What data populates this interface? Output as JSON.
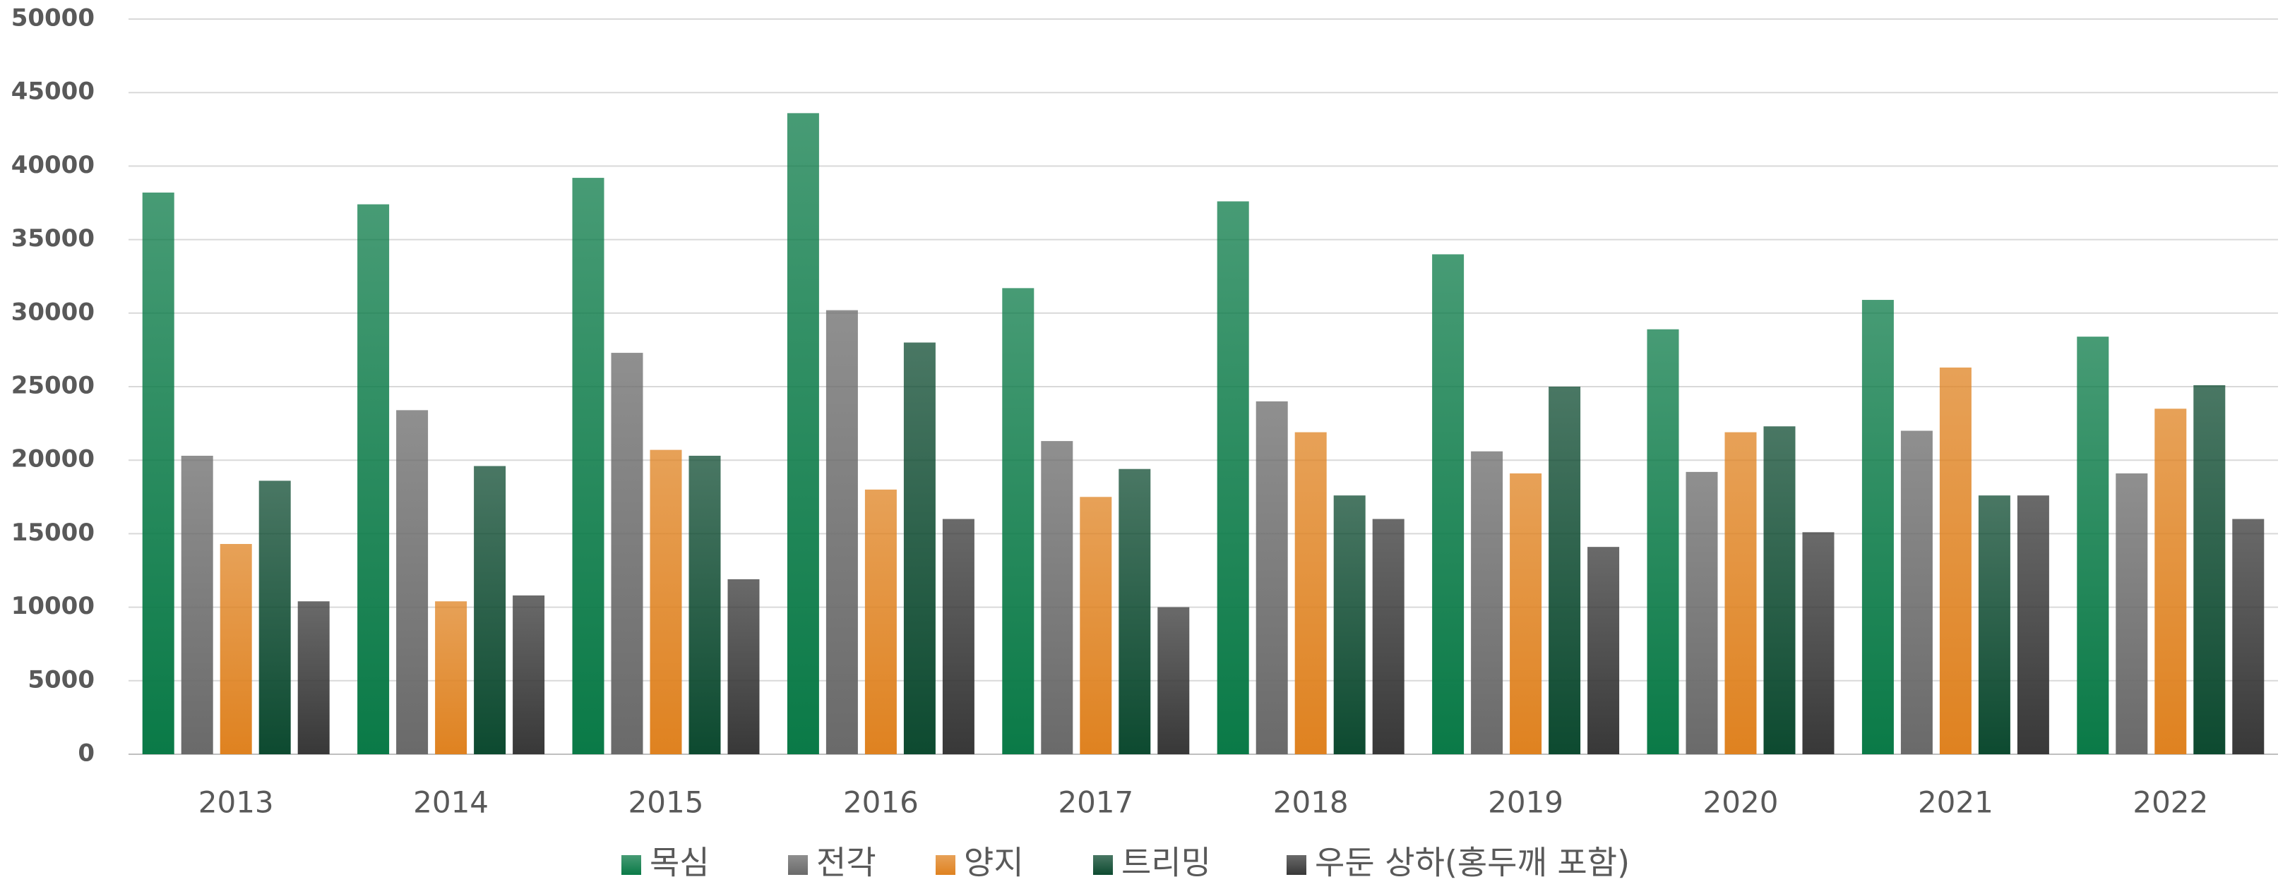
{
  "chart_data": {
    "type": "bar",
    "categories": [
      "2013",
      "2014",
      "2015",
      "2016",
      "2017",
      "2018",
      "2019",
      "2020",
      "2021",
      "2022"
    ],
    "series": [
      {
        "name": "목심",
        "color": "#0a7a47",
        "values": [
          38200,
          37400,
          39200,
          43600,
          31700,
          37600,
          34000,
          28900,
          30900,
          28400
        ]
      },
      {
        "name": "전각",
        "color": "#6a6a6a",
        "values": [
          20300,
          23400,
          27300,
          30200,
          21300,
          24000,
          20600,
          19200,
          22000,
          19100
        ]
      },
      {
        "name": "양지",
        "color": "#df8220",
        "values": [
          14300,
          10400,
          20700,
          18000,
          17500,
          21900,
          19100,
          21900,
          26300,
          23500
        ]
      },
      {
        "name": "트리밍",
        "color": "#0d4a30",
        "values": [
          18600,
          19600,
          20300,
          28000,
          19400,
          17600,
          25000,
          22300,
          17600,
          25100
        ]
      },
      {
        "name": "우둔 상하(홍두깨 포함)",
        "color": "#383838",
        "values": [
          10400,
          10800,
          11900,
          16000,
          10000,
          16000,
          14100,
          15100,
          17600,
          16000
        ]
      }
    ],
    "ylim": [
      0,
      50000
    ],
    "yticks": [
      0,
      5000,
      10000,
      15000,
      20000,
      25000,
      30000,
      35000,
      40000,
      45000,
      50000
    ],
    "grid": true,
    "legend": "bottom"
  }
}
